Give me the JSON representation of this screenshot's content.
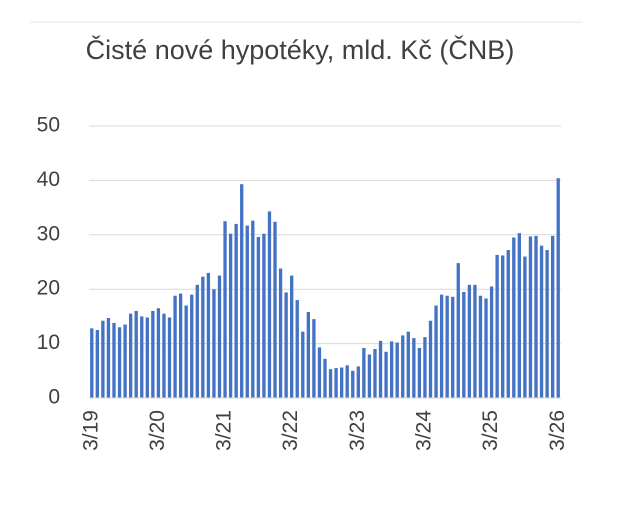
{
  "chart_data": {
    "type": "bar",
    "title": "Čisté nové hypotéky, mld. Kč (ČNB)",
    "categories": [
      "3/19",
      null,
      null,
      null,
      null,
      null,
      null,
      null,
      null,
      null,
      null,
      null,
      "3/20",
      null,
      null,
      null,
      null,
      null,
      null,
      null,
      null,
      null,
      null,
      null,
      "3/21",
      null,
      null,
      null,
      null,
      null,
      null,
      null,
      null,
      null,
      null,
      null,
      "3/22",
      null,
      null,
      null,
      null,
      null,
      null,
      null,
      null,
      null,
      null,
      null,
      "3/23",
      null,
      null,
      null,
      null,
      null,
      null,
      null,
      null,
      null,
      null,
      null,
      "3/24",
      null,
      null,
      null,
      null,
      null,
      null,
      null,
      null,
      null,
      null,
      null,
      "3/25",
      null,
      null,
      null,
      null,
      null,
      null,
      null,
      null,
      null,
      null,
      null,
      "3/26"
    ],
    "values": [
      12.8,
      12.5,
      14.2,
      14.7,
      13.8,
      13.0,
      13.5,
      15.5,
      16.0,
      15.0,
      14.8,
      16.0,
      16.5,
      15.5,
      14.8,
      18.8,
      19.2,
      17.0,
      19.0,
      20.8,
      22.3,
      23.0,
      20.0,
      22.5,
      32.5,
      30.2,
      32.0,
      39.3,
      31.7,
      32.6,
      29.6,
      30.2,
      34.3,
      32.4,
      23.8,
      19.4,
      22.5,
      18.0,
      12.2,
      15.8,
      14.5,
      9.3,
      7.2,
      5.3,
      5.5,
      5.6,
      6.0,
      5.0,
      5.8,
      9.2,
      8.0,
      9.0,
      10.5,
      8.5,
      10.4,
      10.2,
      11.5,
      12.2,
      11.0,
      9.2,
      11.2,
      14.2,
      17.0,
      19.0,
      18.8,
      18.6,
      24.8,
      19.5,
      20.8,
      20.8,
      18.8,
      18.3,
      20.5,
      26.3,
      26.2,
      27.2,
      29.5,
      30.3,
      26.0,
      29.7,
      29.8,
      28.0,
      27.2,
      29.8,
      40.4
    ],
    "color": "#4472c4",
    "ylim": [
      0,
      50
    ],
    "yticks": [
      0,
      10,
      20,
      30,
      40,
      50
    ],
    "grid": true
  }
}
